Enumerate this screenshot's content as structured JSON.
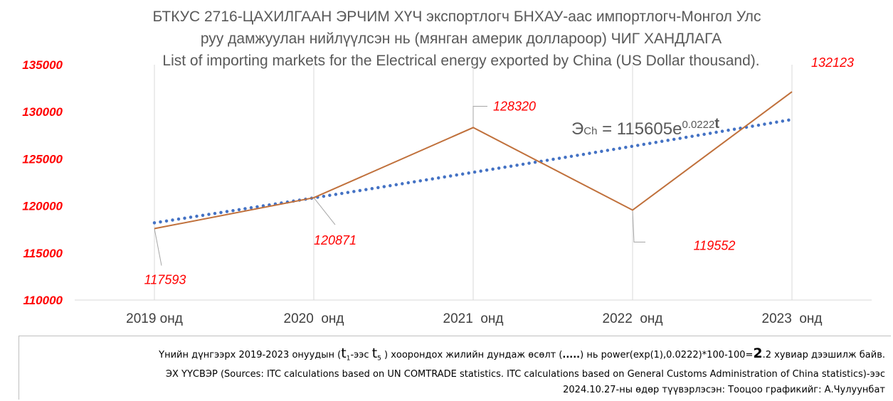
{
  "chart_data": {
    "type": "line",
    "title": [
      "БТКУС 2716-ЦАХИЛГААН ЭРЧИМ ХҮЧ экспортлогч БНХАУ-аас импортлогч-Монгол Улс",
      "руу дамжуулан нийлүүлсэн нь (мянган америк доллароор) ЧИГ ХАНДЛАГА",
      "List of importing markets for the Electrical energy exported by China (US Dollar thousand)."
    ],
    "categories": [
      "2019 онд",
      "2020  онд",
      "2021  онд",
      "2022  онд",
      "2023  онд"
    ],
    "series": [
      {
        "values": [
          117593,
          120871,
          128320,
          119552,
          132123
        ],
        "color": "#c0703b"
      }
    ],
    "trendline": {
      "type": "exponential",
      "color": "#4472c4",
      "style": "dotted",
      "coefficient": 115605,
      "rate": 0.0222,
      "equation_parts": [
        "Э",
        "Ch",
        " = 115605e",
        "0.0222",
        "t"
      ]
    },
    "data_labels": [
      "117593",
      "120871",
      "128320",
      "119552",
      "132123"
    ],
    "ylim": [
      110000,
      135000
    ],
    "yticks": [
      "135000",
      "130000",
      "125000",
      "120000",
      "115000",
      "110000"
    ],
    "ytick_values": [
      135000,
      130000,
      125000,
      120000,
      115000,
      110000
    ],
    "grid": "vertical",
    "legend": "none"
  },
  "notes": {
    "line1": [
      "Үнийн дүнгээрх 2019-2023 онуудын (",
      "t",
      "1",
      "-ээс ",
      "t",
      "5",
      " ) хоорондох жилийн дундаж өсөлт (",
      ".....",
      ") нь power(exp(1),0.0222)*100-100=",
      "2",
      ".2  хувиар дээшилж байв."
    ],
    "line2": "ЭХ ҮҮСВЭР (Sources: ITC calculations based on UN COMTRADE statistics. ITC calculations based on General Customs Administration of China statistics)-ээс",
    "line3": "2024.10.27-ны өдөр түүвэрлэсэн: Тооцоо графикийг: А.Чулуунбат"
  }
}
